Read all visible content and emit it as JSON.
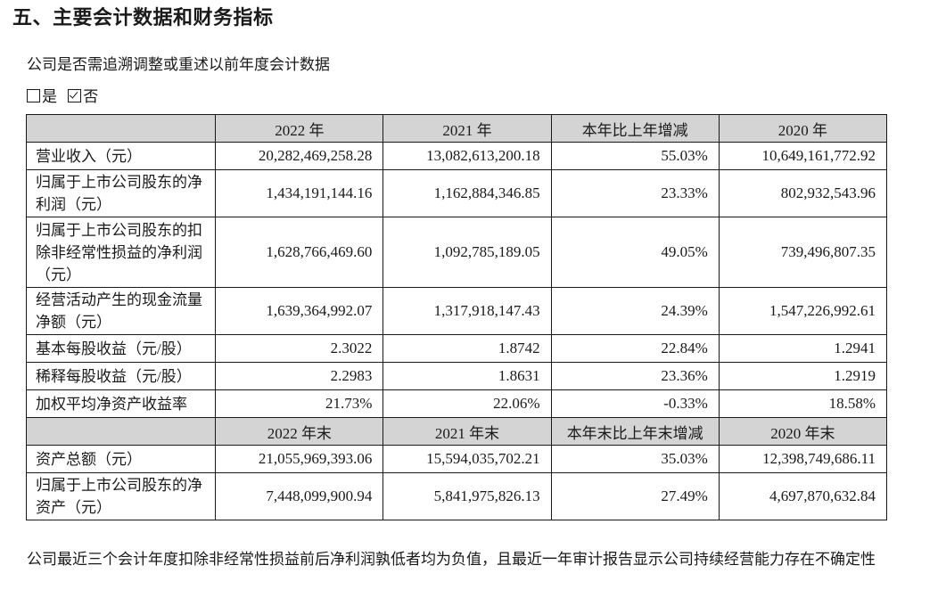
{
  "section_title": "五、主要会计数据和财务指标",
  "question": "公司是否需追溯调整或重述以前年度会计数据",
  "options": [
    {
      "label": "是",
      "checked": false
    },
    {
      "label": "否",
      "checked": true
    }
  ],
  "table": {
    "header1": [
      "",
      "2022 年",
      "2021 年",
      "本年比上年增减",
      "2020 年"
    ],
    "rows1": [
      {
        "label": "营业收入（元）",
        "v1": "20,282,469,258.28",
        "v2": "13,082,613,200.18",
        "v3": "55.03%",
        "v4": "10,649,161,772.92"
      },
      {
        "label": "归属于上市公司股东的净利润（元）",
        "v1": "1,434,191,144.16",
        "v2": "1,162,884,346.85",
        "v3": "23.33%",
        "v4": "802,932,543.96"
      },
      {
        "label": "归属于上市公司股东的扣除非经常性损益的净利润（元）",
        "v1": "1,628,766,469.60",
        "v2": "1,092,785,189.05",
        "v3": "49.05%",
        "v4": "739,496,807.35"
      },
      {
        "label": "经营活动产生的现金流量净额（元）",
        "v1": "1,639,364,992.07",
        "v2": "1,317,918,147.43",
        "v3": "24.39%",
        "v4": "1,547,226,992.61"
      },
      {
        "label": "基本每股收益（元/股）",
        "v1": "2.3022",
        "v2": "1.8742",
        "v3": "22.84%",
        "v4": "1.2941"
      },
      {
        "label": "稀释每股收益（元/股）",
        "v1": "2.2983",
        "v2": "1.8631",
        "v3": "23.36%",
        "v4": "1.2919"
      },
      {
        "label": "加权平均净资产收益率",
        "v1": "21.73%",
        "v2": "22.06%",
        "v3": "-0.33%",
        "v4": "18.58%"
      }
    ],
    "header2": [
      "",
      "2022 年末",
      "2021 年末",
      "本年末比上年末增减",
      "2020 年末"
    ],
    "rows2": [
      {
        "label": "资产总额（元）",
        "v1": "21,055,969,393.06",
        "v2": "15,594,035,702.21",
        "v3": "35.03%",
        "v4": "12,398,749,686.11"
      },
      {
        "label": "归属于上市公司股东的净资产（元）",
        "v1": "7,448,099,900.94",
        "v2": "5,841,975,826.13",
        "v3": "27.49%",
        "v4": "4,697,870,632.84"
      }
    ]
  },
  "note": "公司最近三个会计年度扣除非经常性损益前后净利润孰低者均为负值，且最近一年审计报告显示公司持续经营能力存在不确定性"
}
